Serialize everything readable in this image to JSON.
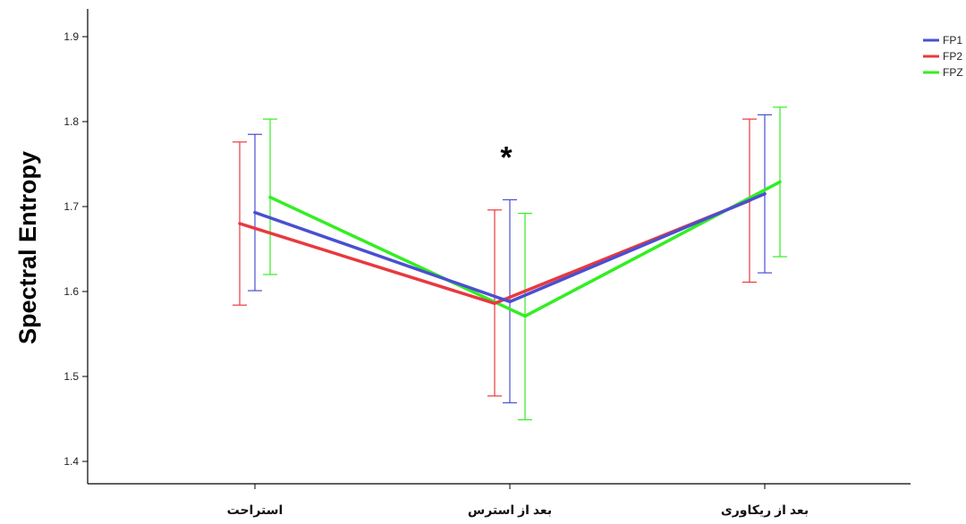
{
  "chart_data": {
    "type": "line",
    "ylabel": "Spectral Entropy",
    "xlabel": "",
    "ylim": [
      1.38,
      1.95
    ],
    "yticks": [
      1.4,
      1.5,
      1.6,
      1.7,
      1.8,
      1.9
    ],
    "categories": [
      "استراحت",
      "بعد از استرس",
      "بعد از ریکاوری"
    ],
    "series": [
      {
        "name": "FP1",
        "color": "#4a4fd0",
        "values": [
          1.693,
          1.588,
          1.715
        ],
        "error_low": [
          1.601,
          1.469,
          1.622
        ],
        "error_high": [
          1.785,
          1.708,
          1.808
        ]
      },
      {
        "name": "FP2",
        "color": "#e8393f",
        "values": [
          1.68,
          1.586,
          1.707
        ],
        "error_low": [
          1.584,
          1.477,
          1.611
        ],
        "error_high": [
          1.776,
          1.696,
          1.803
        ]
      },
      {
        "name": "FPZ",
        "color": "#33ee22",
        "values": [
          1.711,
          1.571,
          1.729
        ],
        "error_low": [
          1.62,
          1.449,
          1.641
        ],
        "error_high": [
          1.803,
          1.692,
          1.817
        ]
      }
    ],
    "legend_position": "top-right",
    "grid": false,
    "annotations": [
      {
        "text": "*",
        "category": "بعد از استرس",
        "y": 1.765
      }
    ]
  }
}
